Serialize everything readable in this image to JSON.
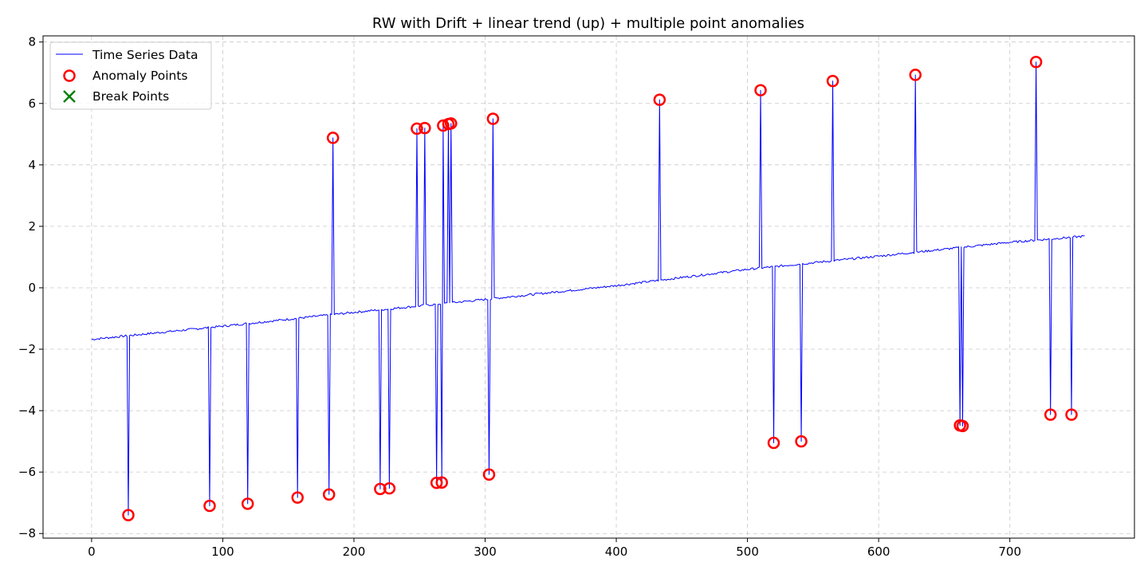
{
  "chart_data": {
    "type": "line",
    "title": "RW with Drift + linear trend (up) + multiple point anomalies",
    "xlabel": "",
    "ylabel": "",
    "xlim": [
      -37,
      795
    ],
    "ylim": [
      -8.15,
      8.2
    ],
    "x_ticks": [
      0,
      100,
      200,
      300,
      400,
      500,
      600,
      700
    ],
    "y_ticks": [
      -8,
      -6,
      -4,
      -2,
      0,
      2,
      4,
      6,
      8
    ],
    "x_tick_labels": [
      "0",
      "100",
      "200",
      "300",
      "400",
      "500",
      "600",
      "700"
    ],
    "y_tick_labels": [
      "−8",
      "−6",
      "−4",
      "−2",
      "0",
      "2",
      "4",
      "6",
      "8"
    ],
    "grid": true,
    "legend_position": "top-left",
    "colors": {
      "line": "#0000ff",
      "anomaly": "#ff0000",
      "break": "#008000",
      "grid": "#b0b0b0"
    },
    "series": [
      {
        "name": "Time Series Data",
        "kind": "line",
        "n_points": 758,
        "start": [
          0,
          -1.68
        ],
        "end": [
          757,
          1.68
        ],
        "baseline_keypoints": [
          [
            0,
            -1.68
          ],
          [
            100,
            -1.25
          ],
          [
            200,
            -0.8
          ],
          [
            300,
            -0.38
          ],
          [
            400,
            0.07
          ],
          [
            500,
            0.6
          ],
          [
            600,
            1.03
          ],
          [
            700,
            1.48
          ],
          [
            757,
            1.68
          ]
        ]
      },
      {
        "name": "Anomaly Points",
        "kind": "scatter",
        "marker": "circle-open",
        "points": [
          [
            28,
            -7.4
          ],
          [
            90,
            -7.1
          ],
          [
            119,
            -7.03
          ],
          [
            157,
            -6.83
          ],
          [
            181,
            -6.73
          ],
          [
            184,
            4.88
          ],
          [
            220,
            -6.55
          ],
          [
            227,
            -6.53
          ],
          [
            248,
            5.18
          ],
          [
            254,
            5.2
          ],
          [
            263,
            -6.35
          ],
          [
            267,
            -6.34
          ],
          [
            268,
            5.28
          ],
          [
            272,
            5.33
          ],
          [
            274,
            5.35
          ],
          [
            303,
            -6.08
          ],
          [
            306,
            5.5
          ],
          [
            433,
            6.12
          ],
          [
            510,
            6.43
          ],
          [
            520,
            -5.05
          ],
          [
            541,
            -5.0
          ],
          [
            565,
            6.73
          ],
          [
            628,
            6.93
          ],
          [
            662,
            -4.48
          ],
          [
            664,
            -4.5
          ],
          [
            720,
            7.35
          ],
          [
            731,
            -4.13
          ],
          [
            747,
            -4.13
          ]
        ]
      },
      {
        "name": "Break Points",
        "kind": "scatter",
        "marker": "x",
        "points": []
      }
    ]
  }
}
